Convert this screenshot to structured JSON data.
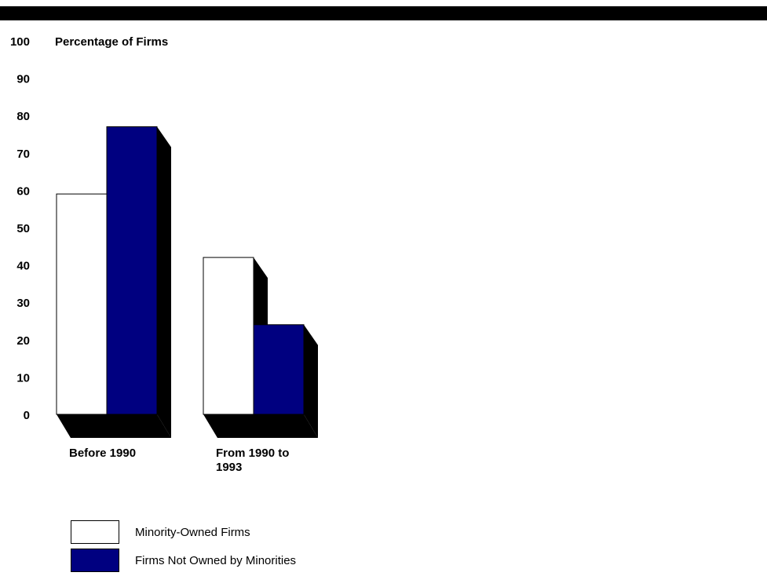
{
  "chart_data": {
    "type": "bar",
    "title": "",
    "ylabel": "Percentage of Firms",
    "xlabel": "",
    "ylim": [
      0,
      100
    ],
    "yticks": [
      0,
      10,
      20,
      30,
      40,
      50,
      60,
      70,
      80,
      90,
      100
    ],
    "categories": [
      "Before 1990",
      "From 1990 to 1993"
    ],
    "series": [
      {
        "name": "Minority-Owned Firms",
        "values": [
          59,
          42
        ],
        "color": "#ffffff"
      },
      {
        "name": "Firms Not Owned by Minorities",
        "values": [
          77,
          24
        ],
        "color": "#000080"
      }
    ],
    "legend_position": "bottom-left",
    "grid": false
  }
}
